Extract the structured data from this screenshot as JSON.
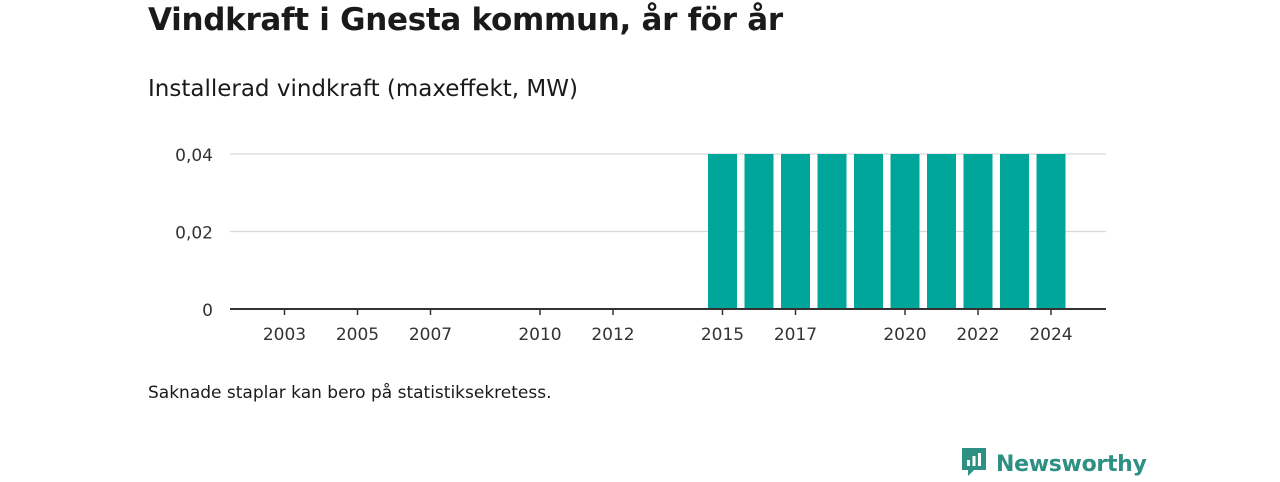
{
  "header": {
    "title": "Vindkraft i Gnesta kommun, år för år",
    "subtitle": "Installerad vindkraft (maxeffekt, MW)"
  },
  "footnote": "Saknade staplar kan bero på statistiksekretess.",
  "brand": {
    "name": "Newsworthy",
    "icon": "newsworthy-logo-icon"
  },
  "colors": {
    "bar": "#00a69a",
    "brand": "#2e8f83",
    "grid": "#d9d9d9",
    "axis": "#333333"
  },
  "chart_data": {
    "type": "bar",
    "categories": [
      "2002",
      "2003",
      "2004",
      "2005",
      "2006",
      "2007",
      "2008",
      "2009",
      "2010",
      "2011",
      "2012",
      "2013",
      "2014",
      "2015",
      "2016",
      "2017",
      "2018",
      "2019",
      "2020",
      "2021",
      "2022",
      "2023",
      "2024"
    ],
    "values": [
      0,
      0,
      0,
      0,
      0,
      0,
      0,
      0,
      0,
      0,
      0,
      0,
      0,
      0.04,
      0.04,
      0.04,
      0.04,
      0.04,
      0.04,
      0.04,
      0.04,
      0.04,
      0.04
    ],
    "x_tick_labels": [
      "2003",
      "2005",
      "2007",
      "2010",
      "2012",
      "2015",
      "2017",
      "2020",
      "2022",
      "2024"
    ],
    "y_ticks": [
      "0",
      "0,02",
      "0,04"
    ],
    "y_tick_values": [
      0,
      0.02,
      0.04
    ],
    "ylim": [
      0,
      0.04
    ],
    "grid": true,
    "title": "Vindkraft i Gnesta kommun, år för år",
    "subtitle": "Installerad vindkraft (maxeffekt, MW)",
    "xlabel": "",
    "ylabel": ""
  }
}
